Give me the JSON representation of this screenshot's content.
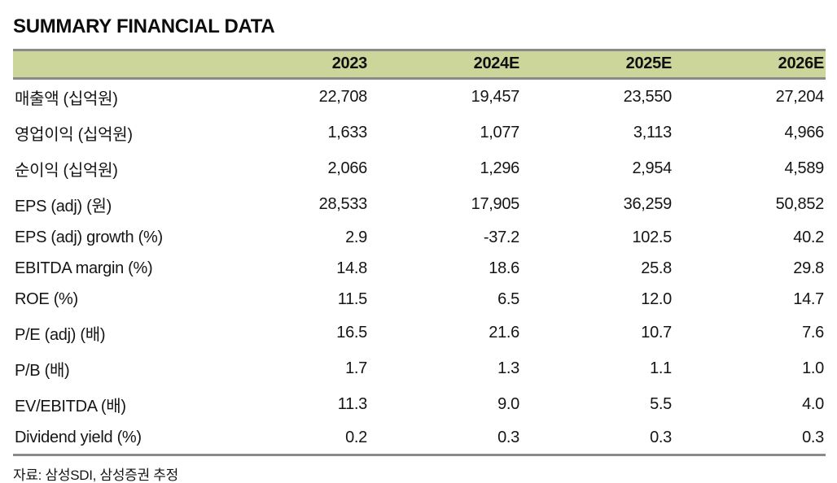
{
  "title": "SUMMARY FINANCIAL DATA",
  "table": {
    "columns": [
      "",
      "2023",
      "2024E",
      "2025E",
      "2026E"
    ],
    "rows": [
      {
        "label": "매출액 (십억원)",
        "values": [
          "22,708",
          "19,457",
          "23,550",
          "27,204"
        ]
      },
      {
        "label": "영업이익 (십억원)",
        "values": [
          "1,633",
          "1,077",
          "3,113",
          "4,966"
        ]
      },
      {
        "label": "순이익 (십억원)",
        "values": [
          "2,066",
          "1,296",
          "2,954",
          "4,589"
        ]
      },
      {
        "label": "EPS (adj) (원)",
        "values": [
          "28,533",
          "17,905",
          "36,259",
          "50,852"
        ]
      },
      {
        "label": "EPS (adj) growth (%)",
        "values": [
          "2.9",
          "-37.2",
          "102.5",
          "40.2"
        ]
      },
      {
        "label": "EBITDA margin (%)",
        "values": [
          "14.8",
          "18.6",
          "25.8",
          "29.8"
        ]
      },
      {
        "label": "ROE (%)",
        "values": [
          "11.5",
          "6.5",
          "12.0",
          "14.7"
        ]
      },
      {
        "label": "P/E (adj) (배)",
        "values": [
          "16.5",
          "21.6",
          "10.7",
          "7.6"
        ]
      },
      {
        "label": "P/B (배)",
        "values": [
          "1.7",
          "1.3",
          "1.1",
          "1.0"
        ]
      },
      {
        "label": "EV/EBITDA (배)",
        "values": [
          "11.3",
          "9.0",
          "5.5",
          "4.0"
        ]
      },
      {
        "label": "Dividend yield (%)",
        "values": [
          "0.2",
          "0.3",
          "0.3",
          "0.3"
        ]
      }
    ]
  },
  "footer": {
    "source": "자료: 삼성SDI, 삼성증권 추정"
  },
  "colors": {
    "header_bg": "#ccd59a",
    "border_gray": "#8a8a8a",
    "text": "#111111",
    "background": "#ffffff"
  }
}
